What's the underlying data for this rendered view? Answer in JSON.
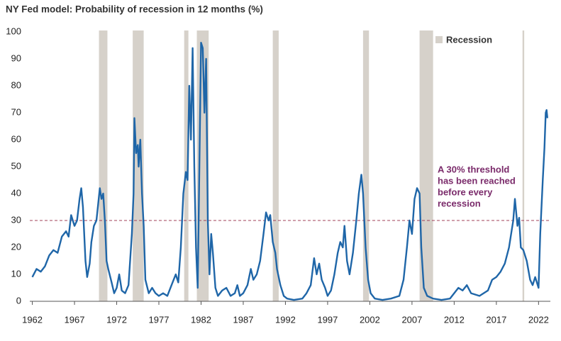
{
  "chart_data": {
    "type": "line",
    "title": "NY Fed model: Probability of recession in 12 months (%)",
    "x": [
      1962.0,
      1962.5,
      1963,
      1963.5,
      1964,
      1964.5,
      1965,
      1965.5,
      1966,
      1966.3,
      1966.6,
      1967,
      1967.3,
      1967.6,
      1967.8,
      1968,
      1968.3,
      1968.5,
      1968.8,
      1969,
      1969.3,
      1969.6,
      1969.8,
      1970.0,
      1970.2,
      1970.4,
      1970.6,
      1970.8,
      1971,
      1971.4,
      1971.7,
      1972,
      1972.3,
      1972.6,
      1973,
      1973.4,
      1973.8,
      1974,
      1974.1,
      1974.3,
      1974.5,
      1974.6,
      1974.8,
      1975.0,
      1975.2,
      1975.4,
      1975.8,
      1976.2,
      1976.6,
      1977,
      1977.5,
      1978,
      1978.5,
      1979,
      1979.3,
      1979.6,
      1979.9,
      1980.2,
      1980.4,
      1980.6,
      1980.8,
      1981.0,
      1981.2,
      1981.4,
      1981.6,
      1981.8,
      1982.0,
      1982.2,
      1982.4,
      1982.6,
      1982.8,
      1983.0,
      1983.2,
      1983.4,
      1983.7,
      1984,
      1984.5,
      1985,
      1985.5,
      1986,
      1986.3,
      1986.6,
      1987,
      1987.5,
      1987.9,
      1988.2,
      1988.6,
      1989,
      1989.4,
      1989.7,
      1990,
      1990.2,
      1990.5,
      1990.8,
      1991,
      1991.4,
      1991.8,
      1992.2,
      1993,
      1994,
      1994.5,
      1995,
      1995.4,
      1995.7,
      1996,
      1996.3,
      1996.7,
      1997,
      1997.4,
      1997.8,
      1998.2,
      1998.5,
      1998.8,
      1999,
      1999.3,
      1999.6,
      2000,
      2000.4,
      2000.7,
      2001.0,
      2001.2,
      2001.5,
      2001.8,
      2002.1,
      2002.6,
      2003.5,
      2004.5,
      2005.5,
      2006,
      2006.4,
      2006.7,
      2007.0,
      2007.3,
      2007.6,
      2007.9,
      2008.1,
      2008.4,
      2008.8,
      2009.5,
      2010.5,
      2011.5,
      2012,
      2012.5,
      2013,
      2013.5,
      2014,
      2015,
      2016,
      2016.5,
      2017,
      2017.5,
      2018,
      2018.5,
      2019,
      2019.2,
      2019.5,
      2019.7,
      2019.9,
      2020.2,
      2020.6,
      2021,
      2021.3,
      2021.6,
      2022,
      2022.2,
      2022.5,
      2022.7,
      2022.85,
      2022.95,
      2023.05
    ],
    "values": [
      9,
      12,
      11,
      13,
      17,
      19,
      18,
      24,
      26,
      24,
      32,
      28,
      30,
      38,
      42,
      35,
      15,
      9,
      14,
      22,
      28,
      30,
      36,
      42,
      38,
      40,
      30,
      15,
      12,
      7,
      3,
      5,
      10,
      4,
      3,
      6,
      25,
      40,
      68,
      55,
      58,
      50,
      60,
      40,
      28,
      8,
      3,
      5,
      3,
      2,
      3,
      2,
      6,
      10,
      7,
      20,
      40,
      48,
      45,
      80,
      60,
      94,
      50,
      20,
      5,
      50,
      96,
      94,
      70,
      90,
      30,
      10,
      25,
      18,
      5,
      2,
      4,
      5,
      2,
      3,
      6,
      2,
      3,
      6,
      12,
      8,
      10,
      15,
      25,
      33,
      30,
      32,
      22,
      18,
      12,
      6,
      2,
      1,
      0.5,
      1,
      3,
      6,
      16,
      10,
      14,
      8,
      5,
      2,
      4,
      10,
      18,
      22,
      20,
      28,
      15,
      10,
      18,
      30,
      40,
      47,
      40,
      20,
      8,
      3,
      1,
      0.5,
      1,
      2,
      8,
      20,
      30,
      25,
      38,
      42,
      40,
      20,
      5,
      2,
      1,
      0.5,
      1,
      3,
      5,
      4,
      6,
      3,
      2,
      4,
      8,
      9,
      11,
      14,
      20,
      30,
      38,
      28,
      31,
      20,
      19,
      15,
      8,
      6,
      9,
      5,
      25,
      45,
      57,
      70,
      71,
      68
    ],
    "color": "#1f66a8",
    "recessions": {
      "name": "Recession",
      "color": "#d6d1ca",
      "periods": [
        [
          1969.9,
          1970.9
        ],
        [
          1973.9,
          1975.2
        ],
        [
          1980.0,
          1980.5
        ],
        [
          1981.5,
          1982.9
        ],
        [
          1990.5,
          1991.2
        ],
        [
          2001.2,
          2001.9
        ],
        [
          2007.9,
          2009.5
        ],
        [
          2020.1,
          2020.3
        ]
      ]
    },
    "threshold": {
      "value": 30,
      "color": "#a0405a",
      "label": [
        "A 30% threshold",
        "has been reached",
        "before every",
        "recession"
      ],
      "label_color": "#7a2a6a"
    },
    "xlim": [
      1961.7,
      2023.4
    ],
    "ylim": [
      0,
      100
    ],
    "xticks": [
      1962,
      1967,
      1972,
      1977,
      1982,
      1987,
      1992,
      1997,
      2002,
      2007,
      2012,
      2017,
      2022
    ],
    "yticks": [
      0,
      10,
      20,
      30,
      40,
      50,
      60,
      70,
      80,
      90,
      100
    ]
  }
}
